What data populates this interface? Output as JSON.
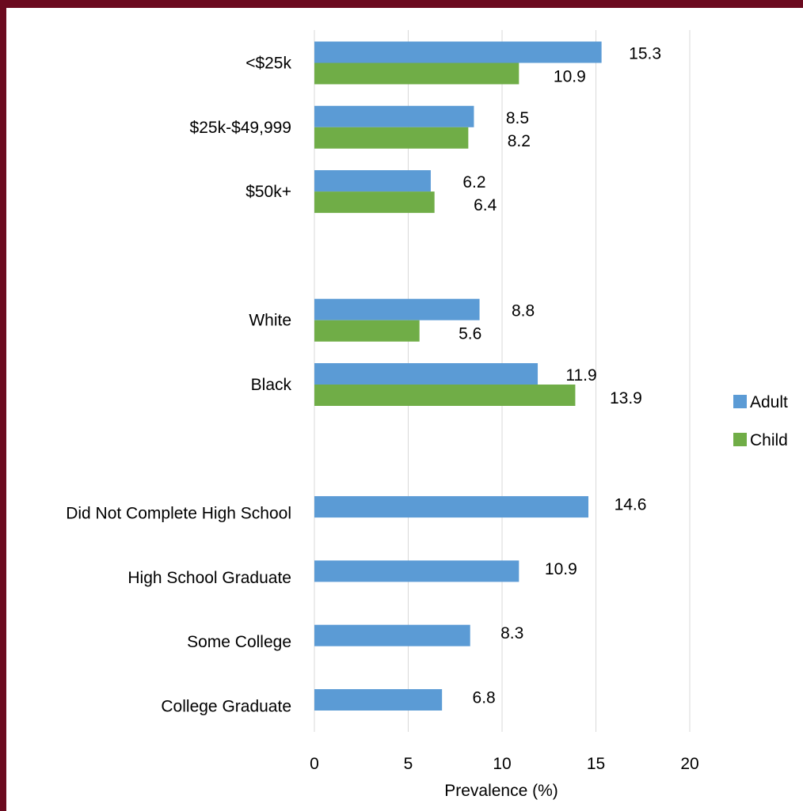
{
  "chart_data": {
    "type": "bar",
    "orientation": "horizontal",
    "categories": [
      "<$25k",
      "$25k-$49,999",
      "$50k+",
      "",
      "White",
      "Black",
      "",
      "Did Not Complete High School",
      "High School Graduate",
      "Some College",
      "College Graduate"
    ],
    "series": [
      {
        "name": "Adult",
        "color": "#5b9bd5",
        "values": [
          15.3,
          8.5,
          6.2,
          null,
          8.8,
          11.9,
          null,
          14.6,
          10.9,
          8.3,
          6.8
        ],
        "labels": [
          "15.3",
          "8.5",
          "6.2",
          null,
          "8.8",
          "11.9",
          null,
          "14.6",
          "10.9",
          "8.3",
          "6.8"
        ]
      },
      {
        "name": "Child",
        "color": "#70ad47",
        "values": [
          10.9,
          8.2,
          6.4,
          null,
          5.6,
          13.9,
          null,
          null,
          null,
          null,
          null
        ],
        "labels": [
          "10.9",
          "8.2",
          "6.4",
          null,
          "5.6",
          "13.9",
          null,
          null,
          null,
          null,
          null
        ]
      }
    ],
    "xlabel": "Prevalence (%)",
    "xlim": [
      0,
      20
    ],
    "xticks": [
      "0",
      "5",
      "10",
      "15",
      "20"
    ],
    "grid": "vertical",
    "legend_position": "right"
  }
}
